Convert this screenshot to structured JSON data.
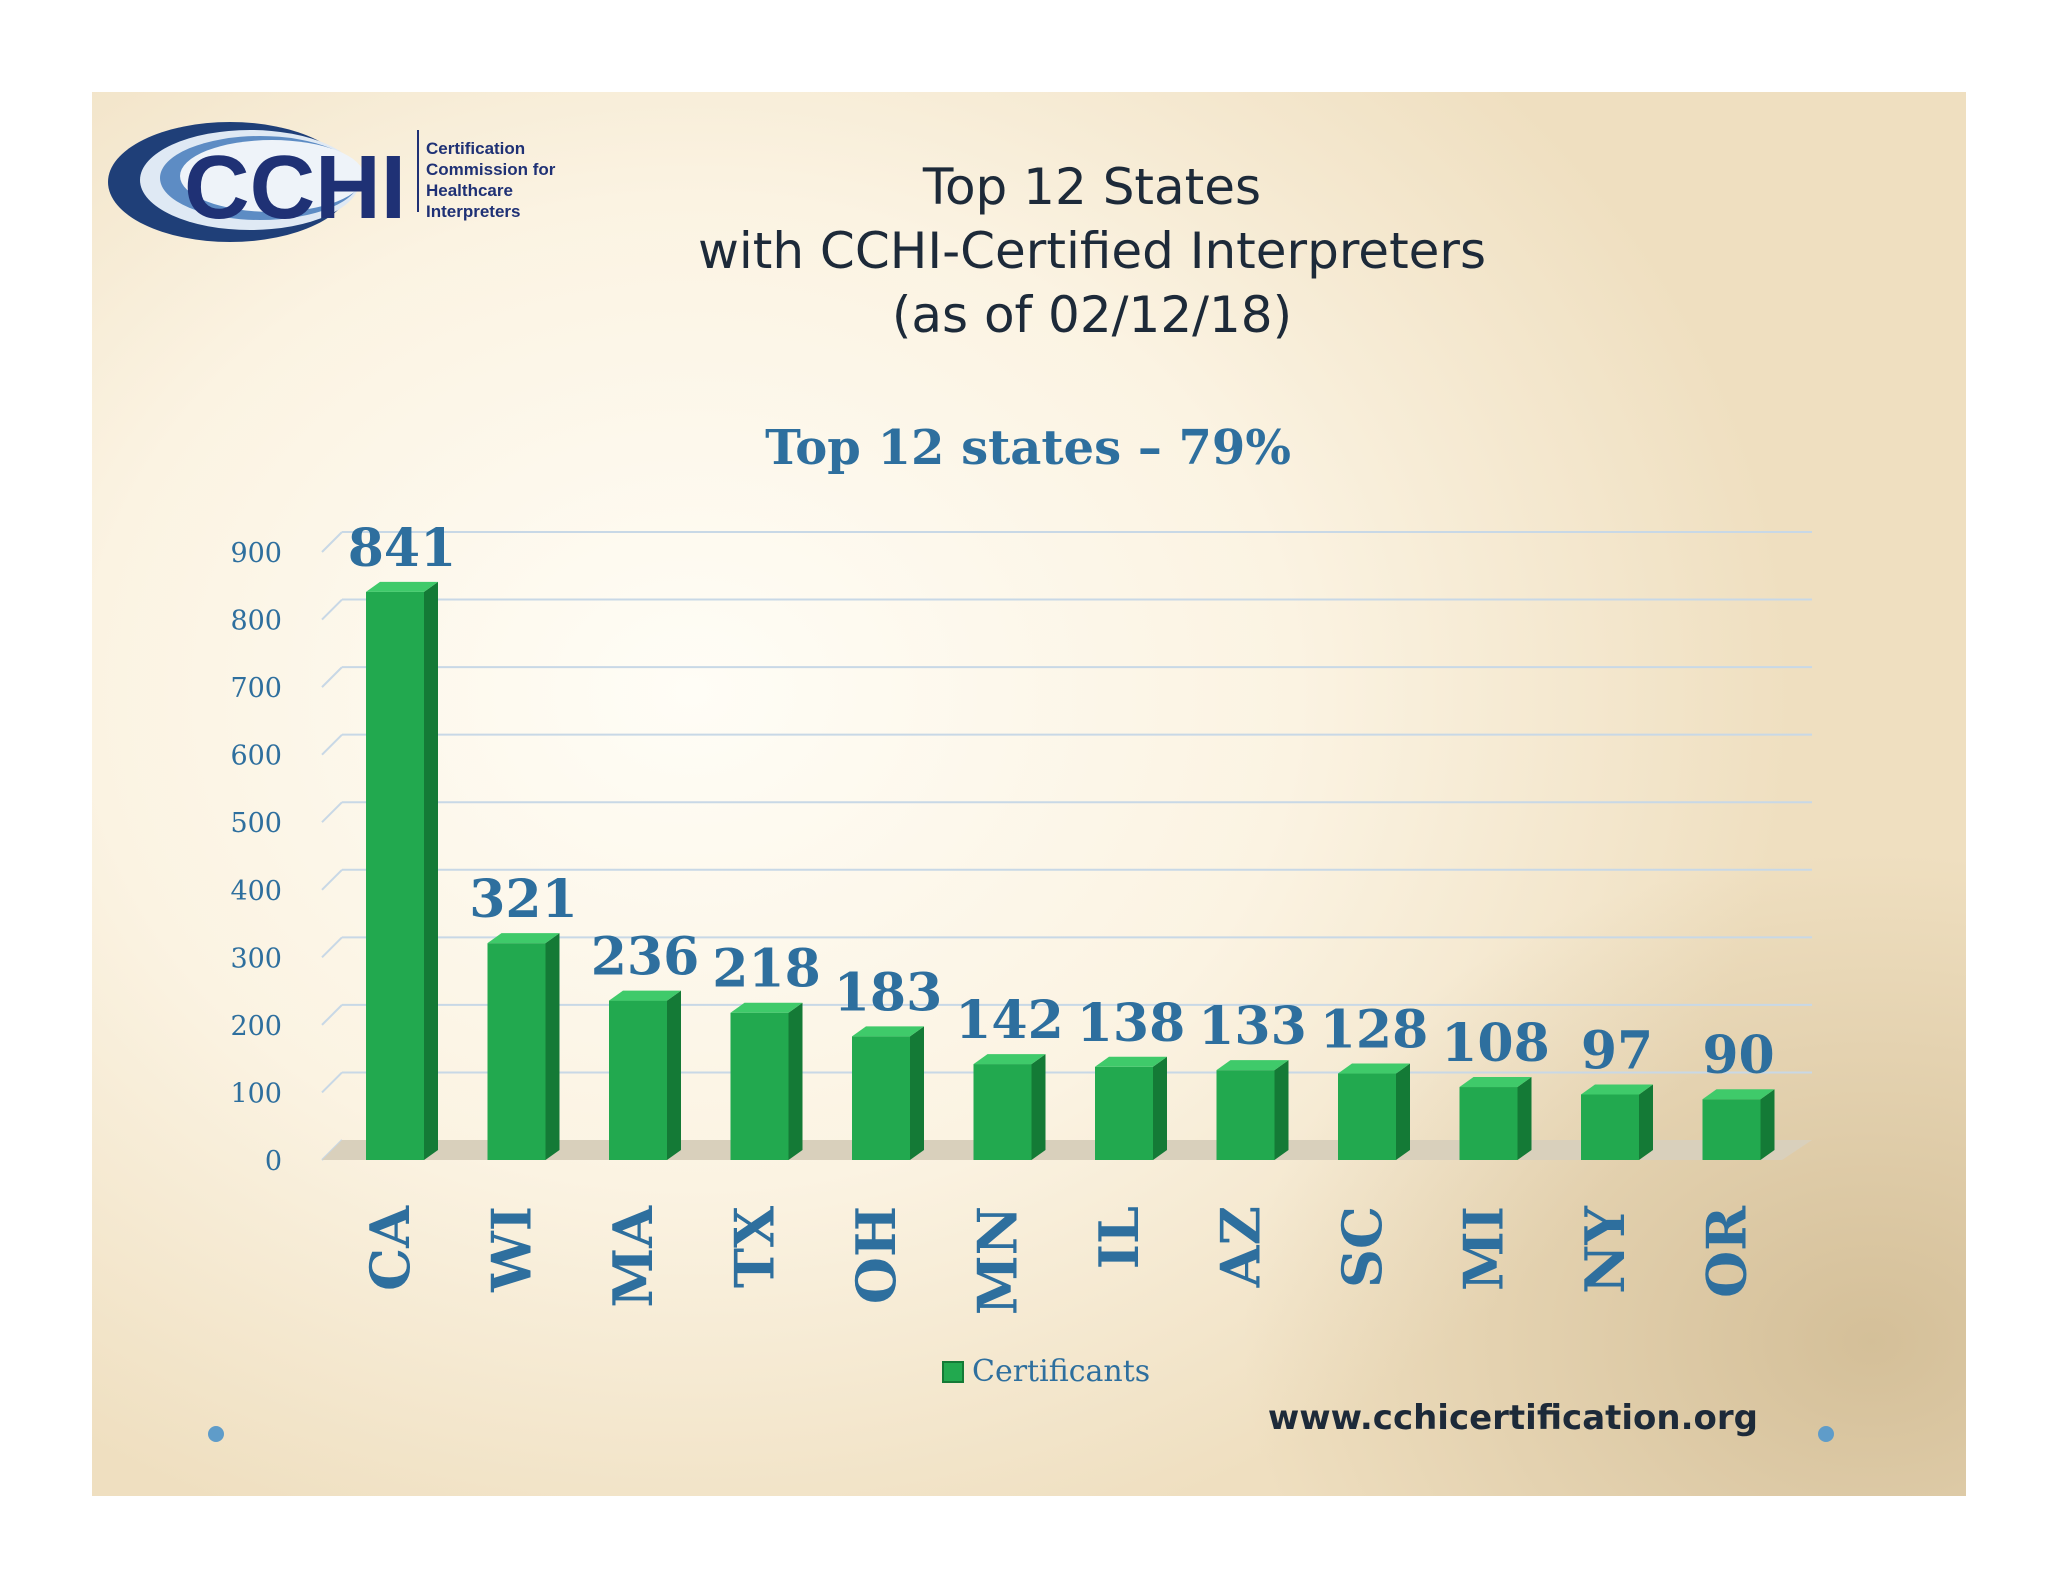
{
  "slide": {
    "title_lines": [
      "Top 12 States",
      "with CCHI-Certified Interpreters",
      "(as of 02/12/18)"
    ],
    "footer_url": "www.cchicertification.org",
    "logo": {
      "wordmark": "CCHI",
      "tagline_lines": [
        "Certification",
        "Commission for",
        "Healthcare",
        "Interpreters"
      ]
    }
  },
  "colors": {
    "bar_front": "#22a94f",
    "bar_side": "#147a36",
    "bar_top": "#3fca6a",
    "label_blue": "#2e6f9e",
    "title_dark": "#1d2a39"
  },
  "chart_data": {
    "type": "bar",
    "title": "Top 12 states – 79%",
    "categories": [
      "CA",
      "WI",
      "MA",
      "TX",
      "OH",
      "MN",
      "IL",
      "AZ",
      "SC",
      "MI",
      "NY",
      "OR"
    ],
    "series": [
      {
        "name": "Certificants",
        "values": [
          841,
          321,
          236,
          218,
          183,
          142,
          138,
          133,
          128,
          108,
          97,
          90
        ]
      }
    ],
    "ylim": [
      0,
      900
    ],
    "yticks": [
      0,
      100,
      200,
      300,
      400,
      500,
      600,
      700,
      800,
      900
    ],
    "xlabel": "",
    "ylabel": "",
    "grid": true,
    "legend_position": "bottom",
    "data_labels": true,
    "three_d": true
  }
}
